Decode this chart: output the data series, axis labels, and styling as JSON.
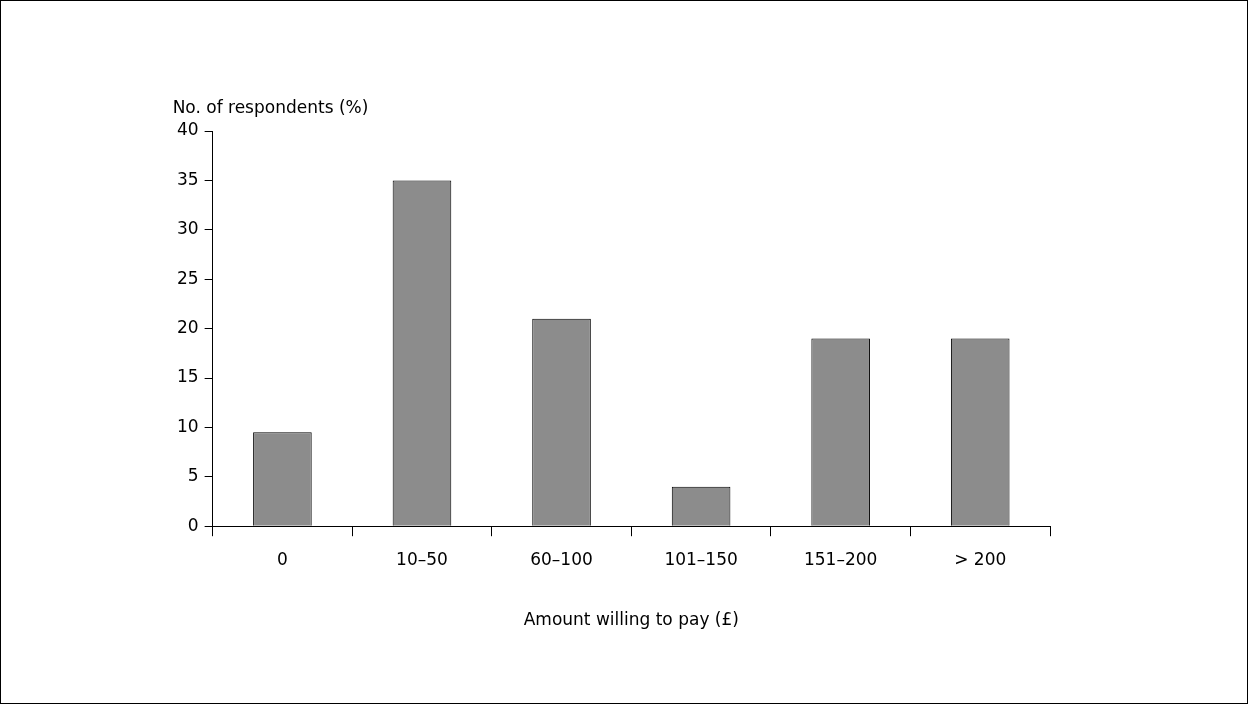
{
  "chart_data": {
    "type": "bar",
    "ylabel": "No. of respondents (%)",
    "xlabel": "Amount willing to pay (£)",
    "categories": [
      "0",
      "10–50",
      "60–100",
      "101–150",
      "151–200",
      "> 200"
    ],
    "values": [
      9.5,
      35,
      21,
      4,
      19,
      19
    ],
    "color": "#8c8c8c",
    "ylim": [
      0,
      40
    ],
    "yticks": [
      0,
      5,
      10,
      15,
      20,
      25,
      30,
      35,
      40
    ],
    "grid": false,
    "legend": false
  }
}
